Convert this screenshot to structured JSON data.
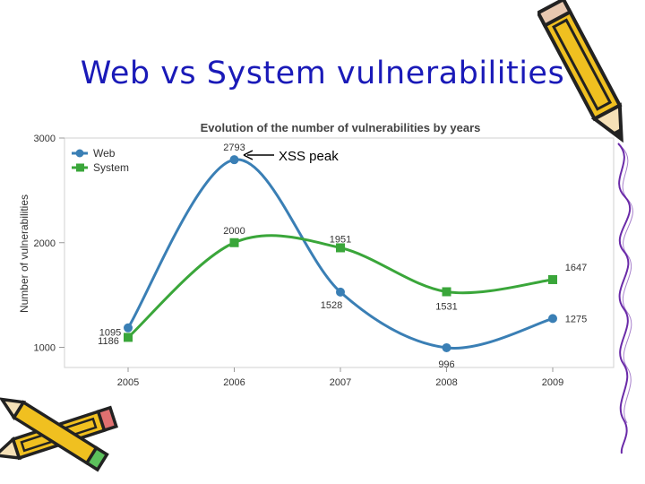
{
  "slide": {
    "title": "Web vs System vulnerabilities"
  },
  "colors": {
    "title": "#1a1ab8",
    "web": "#3a7fb5",
    "system": "#3aa63a",
    "pencil_body": "#f0c020",
    "pencil_outline": "#222222",
    "squiggle": "#6a2aa8"
  },
  "icons": [
    "pencil-icon",
    "crossed-pencils-icon",
    "squiggle-decoration"
  ],
  "chart_data": {
    "type": "line",
    "title": "Evolution of the number of vulnerabilities by years",
    "xlabel": "",
    "ylabel": "Number of vulnerabilities",
    "categories": [
      "2005",
      "2006",
      "2007",
      "2008",
      "2009"
    ],
    "ylim": [
      900,
      3000
    ],
    "yticks": [
      1000,
      2000,
      3000
    ],
    "legend_position": "top-left",
    "series": [
      {
        "name": "Web",
        "values": [
          1186,
          2793,
          1528,
          996,
          1275
        ],
        "labels": [
          "1186",
          "2793",
          "1528",
          "996",
          "1275"
        ]
      },
      {
        "name": "System",
        "values": [
          1095,
          2000,
          1951,
          1531,
          1647
        ],
        "labels": [
          "1095",
          "2000",
          "1951",
          "1531",
          "1647"
        ]
      }
    ],
    "annotation": {
      "text": "XSS peak",
      "series": "Web",
      "category": "2006"
    }
  }
}
